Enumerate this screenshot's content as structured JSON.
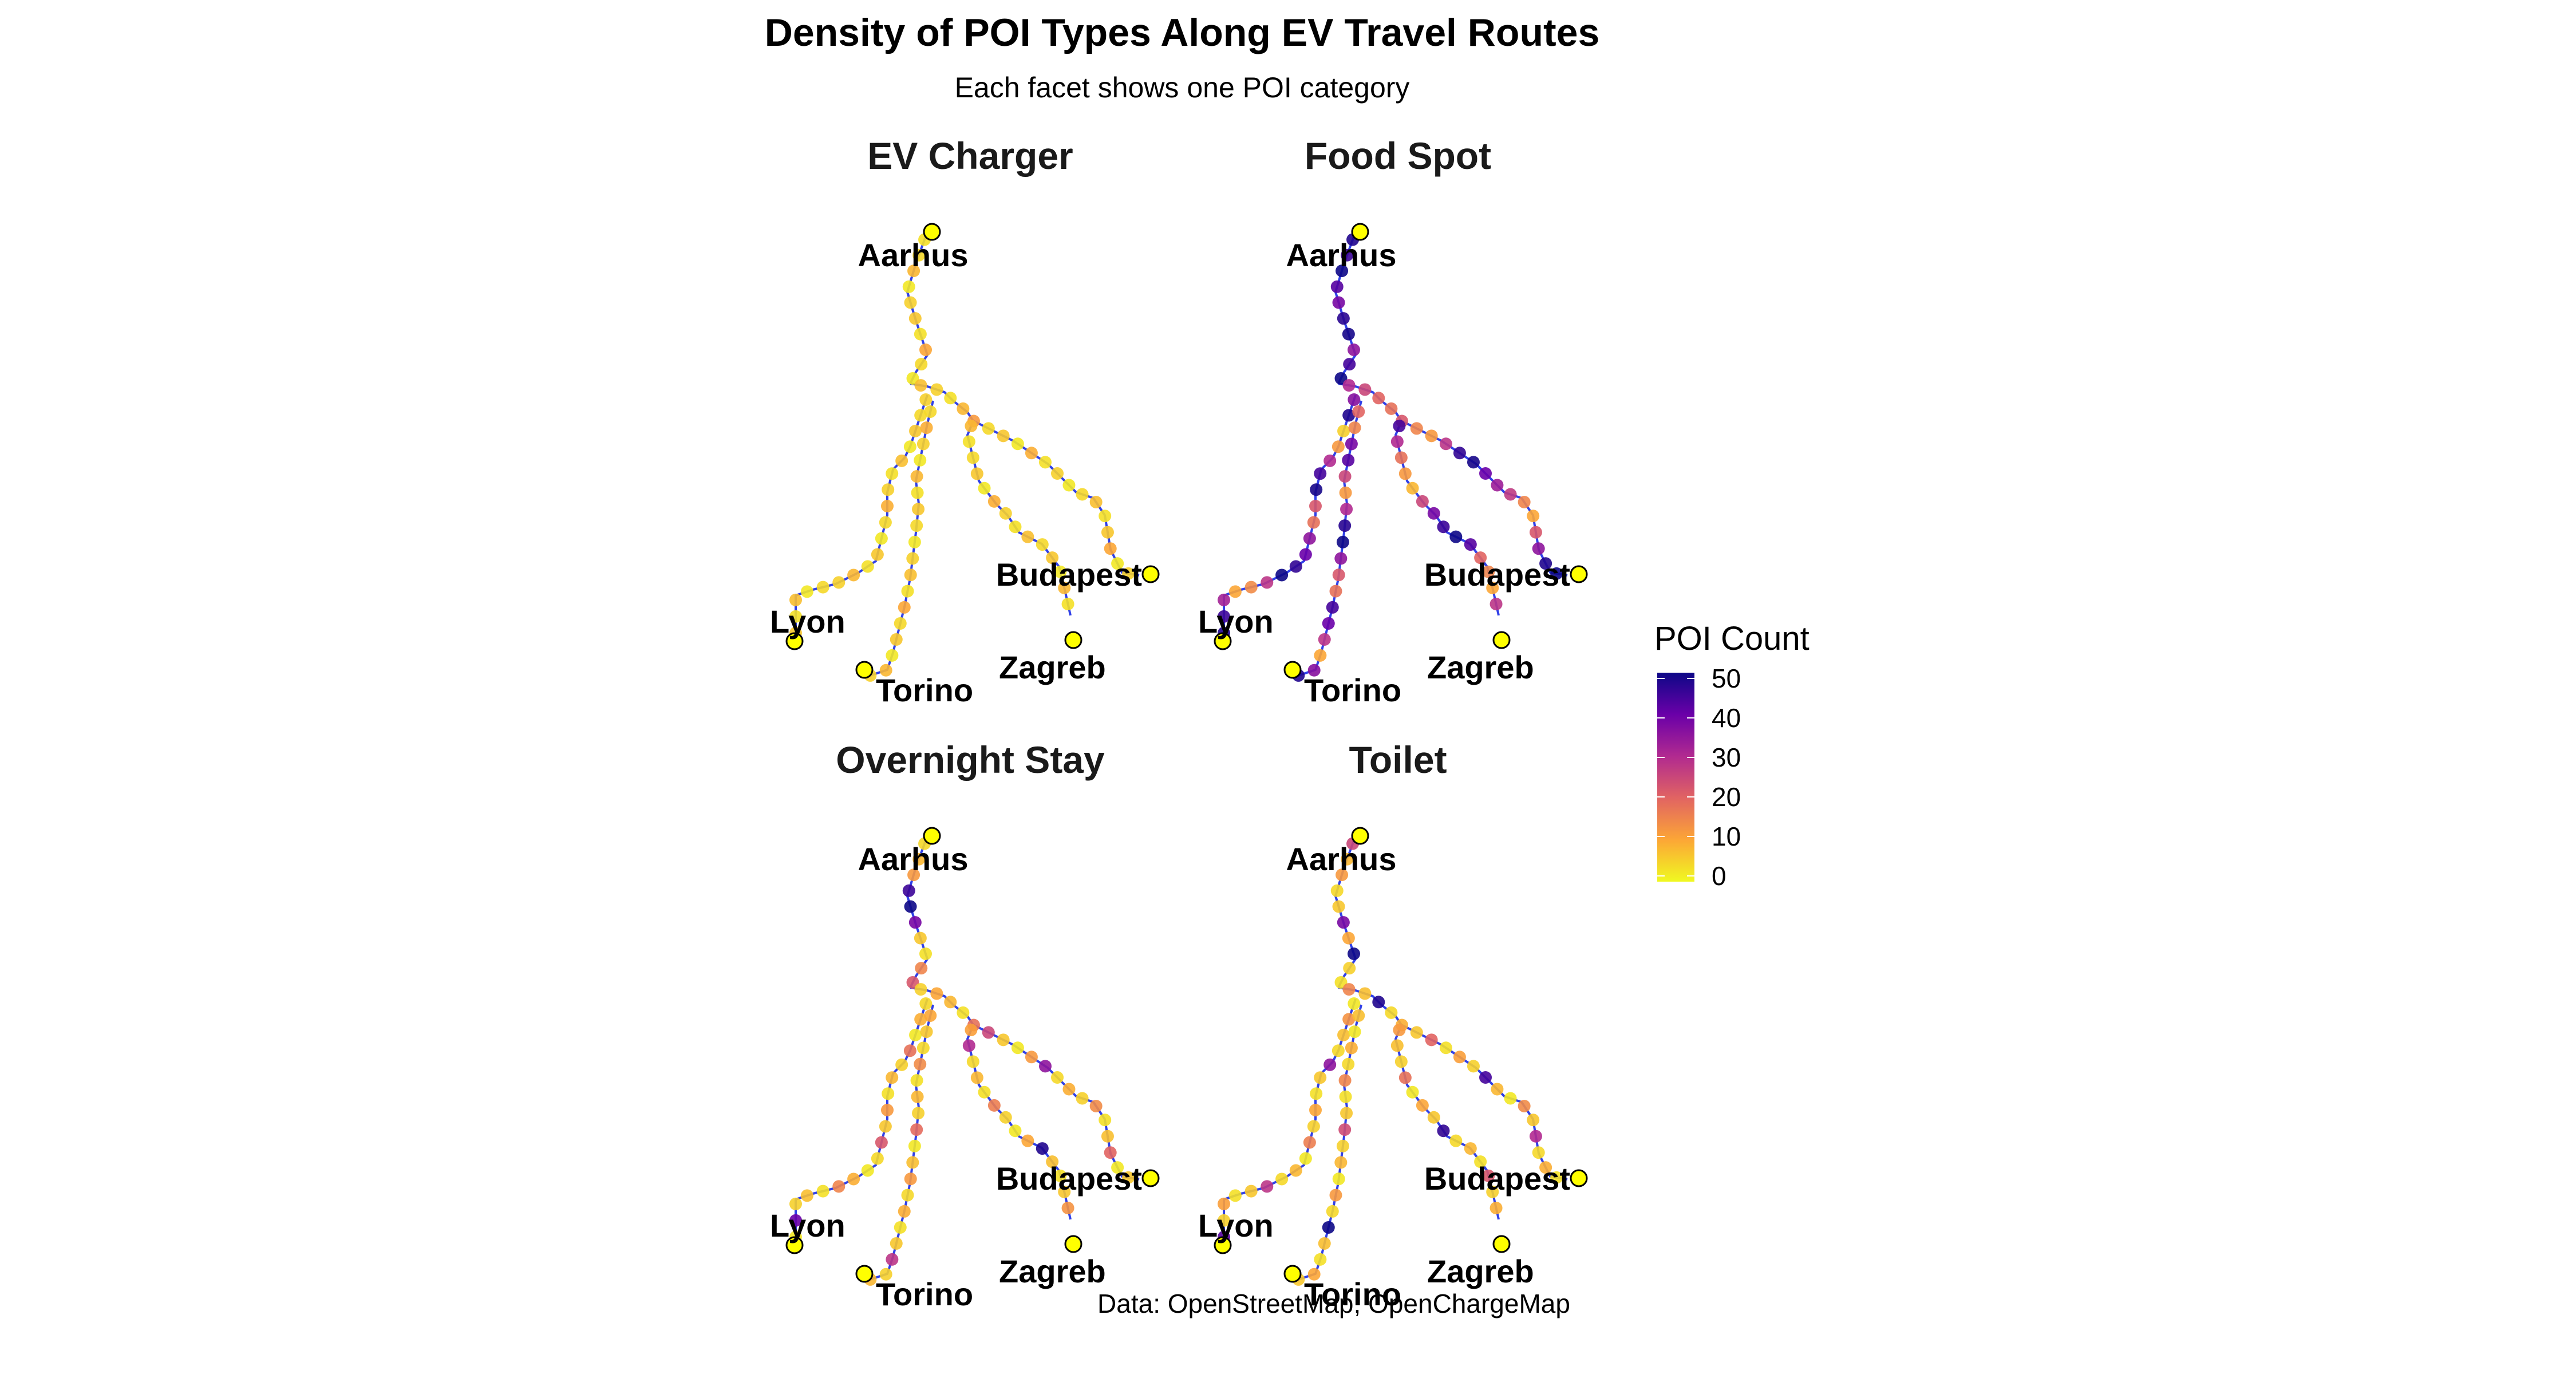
{
  "chart_data": {
    "type": "scatter",
    "title": "Density of POI Types Along EV Travel Routes",
    "subtitle": "Each facet shows one POI category",
    "caption": "Data: OpenStreetMap, OpenChargeMap",
    "legend": {
      "title": "POI Count",
      "placement": "right",
      "ticks": [
        "50",
        "40",
        "30",
        "20",
        "10",
        "0"
      ],
      "range": [
        0,
        50
      ],
      "palette": [
        "#0d0887",
        "#6a00a8",
        "#b12a90",
        "#e16462",
        "#fca636",
        "#f0f921"
      ]
    },
    "grid": false,
    "route_color": "#3040e8",
    "endpoint_color": "#ffff00",
    "facets": [
      {
        "name": "EV Charger",
        "city_labels": [
          "Aarhus",
          "Budapest",
          "Lyon",
          "Torino",
          "Zagreb"
        ],
        "poi_counts": [
          3,
          4,
          8,
          2,
          5,
          6,
          3,
          10,
          4,
          2,
          7,
          5,
          3,
          8,
          12,
          4,
          6,
          2,
          9,
          3,
          5,
          2,
          4,
          7,
          3,
          6,
          10,
          2,
          5,
          8,
          3,
          4,
          6,
          2,
          9,
          5,
          3,
          7,
          4,
          6,
          2,
          8,
          3,
          5,
          4,
          6,
          2,
          7,
          3,
          5,
          9,
          4,
          2,
          6,
          3,
          8,
          5,
          4,
          2,
          7,
          3,
          6,
          4,
          9,
          5,
          2,
          8,
          3,
          6,
          4,
          2,
          5,
          7,
          3,
          10,
          4,
          6,
          2,
          8,
          5
        ]
      },
      {
        "name": "Food Spot",
        "city_labels": [
          "Aarhus",
          "Budapest",
          "Lyon",
          "Torino",
          "Zagreb"
        ],
        "poi_counts": [
          48,
          45,
          50,
          42,
          38,
          47,
          49,
          35,
          44,
          50,
          30,
          25,
          20,
          18,
          22,
          15,
          12,
          28,
          46,
          49,
          40,
          33,
          27,
          15,
          10,
          22,
          35,
          48,
          50,
          44,
          30,
          18,
          12,
          8,
          25,
          38,
          45,
          50,
          42,
          20,
          15,
          10,
          28,
          36,
          48,
          5,
          12,
          30,
          44,
          49,
          22,
          18,
          35,
          40,
          46,
          50,
          28,
          14,
          10,
          32,
          45,
          48,
          20,
          15,
          38,
          42,
          25,
          12,
          30,
          47,
          50,
          35,
          22,
          18,
          44,
          40,
          28,
          10,
          36,
          48
        ]
      },
      {
        "name": "Overnight Stay",
        "city_labels": [
          "Aarhus",
          "Budapest",
          "Lyon",
          "Torino",
          "Zagreb"
        ],
        "poi_counts": [
          4,
          8,
          12,
          45,
          50,
          38,
          6,
          3,
          15,
          22,
          5,
          10,
          8,
          3,
          18,
          25,
          6,
          2,
          12,
          35,
          4,
          9,
          5,
          14,
          3,
          7,
          20,
          2,
          6,
          11,
          30,
          4,
          8,
          3,
          16,
          5,
          2,
          10,
          48,
          7,
          3,
          6,
          13,
          4,
          9,
          2,
          18,
          5,
          8,
          3,
          12,
          6,
          22,
          4,
          2,
          9,
          15,
          3,
          7,
          5,
          40,
          2,
          10,
          6,
          4,
          14,
          3,
          8,
          5,
          19,
          2,
          7,
          12,
          4,
          9,
          3,
          6,
          28,
          5,
          8
        ]
      },
      {
        "name": "Toilet",
        "city_labels": [
          "Aarhus",
          "Budapest",
          "Lyon",
          "Torino",
          "Zagreb"
        ],
        "poi_counts": [
          25,
          8,
          12,
          4,
          6,
          38,
          10,
          50,
          5,
          3,
          15,
          7,
          48,
          4,
          9,
          6,
          20,
          3,
          11,
          5,
          44,
          8,
          2,
          14,
          6,
          30,
          4,
          9,
          3,
          12,
          7,
          5,
          18,
          2,
          10,
          6,
          46,
          4,
          8,
          3,
          22,
          5,
          9,
          2,
          13,
          7,
          4,
          35,
          6,
          3,
          10,
          5,
          16,
          2,
          8,
          4,
          28,
          6,
          3,
          11,
          5,
          42,
          7,
          2,
          9,
          4,
          15,
          3,
          6,
          24,
          5,
          8,
          2,
          12,
          4,
          50,
          7,
          3,
          10,
          6
        ]
      }
    ]
  }
}
